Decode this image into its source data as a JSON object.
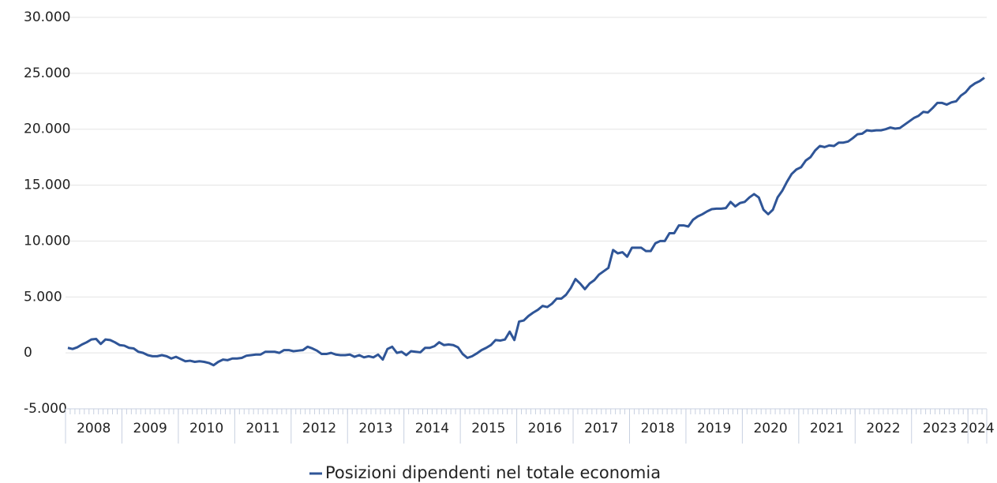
{
  "chart_data": {
    "type": "line",
    "categories": [
      "2008",
      null,
      null,
      null,
      null,
      null,
      null,
      null,
      null,
      null,
      null,
      null,
      "2009",
      null,
      null,
      null,
      null,
      null,
      null,
      null,
      null,
      null,
      null,
      null,
      "2010",
      null,
      null,
      null,
      null,
      null,
      null,
      null,
      null,
      null,
      null,
      null,
      "2011",
      null,
      null,
      null,
      null,
      null,
      null,
      null,
      null,
      null,
      null,
      null,
      "2012",
      null,
      null,
      null,
      null,
      null,
      null,
      null,
      null,
      null,
      null,
      null,
      "2013",
      null,
      null,
      null,
      null,
      null,
      null,
      null,
      null,
      null,
      null,
      null,
      "2014",
      null,
      null,
      null,
      null,
      null,
      null,
      null,
      null,
      null,
      null,
      null,
      "2015",
      null,
      null,
      null,
      null,
      null,
      null,
      null,
      null,
      null,
      null,
      null,
      "2016",
      null,
      null,
      null,
      null,
      null,
      null,
      null,
      null,
      null,
      null,
      null,
      "2017",
      null,
      null,
      null,
      null,
      null,
      null,
      null,
      null,
      null,
      null,
      null,
      "2018",
      null,
      null,
      null,
      null,
      null,
      null,
      null,
      null,
      null,
      null,
      null,
      "2019",
      null,
      null,
      null,
      null,
      null,
      null,
      null,
      null,
      null,
      null,
      null,
      "2020",
      null,
      null,
      null,
      null,
      null,
      null,
      null,
      null,
      null,
      null,
      null,
      "2021",
      null,
      null,
      null,
      null,
      null,
      null,
      null,
      null,
      null,
      null,
      null,
      "2022",
      null,
      null,
      null,
      null,
      null,
      null,
      null,
      null,
      null,
      null,
      null,
      "2023",
      null,
      null,
      null,
      null,
      null,
      null,
      null,
      null,
      null,
      null,
      null,
      "2024",
      null,
      null,
      null
    ],
    "series": [
      {
        "name": "Posizioni dipendenti nel totale economia",
        "color": "#2f5597",
        "values": [
          450,
          350,
          500,
          750,
          950,
          1200,
          1250,
          800,
          1200,
          1150,
          950,
          700,
          650,
          450,
          400,
          100,
          0,
          -200,
          -300,
          -300,
          -200,
          -300,
          -500,
          -350,
          -550,
          -750,
          -700,
          -800,
          -750,
          -800,
          -900,
          -1100,
          -800,
          -600,
          -650,
          -500,
          -500,
          -450,
          -250,
          -200,
          -150,
          -150,
          100,
          100,
          100,
          0,
          250,
          250,
          150,
          200,
          250,
          550,
          400,
          200,
          -100,
          -100,
          0,
          -150,
          -200,
          -200,
          -150,
          -350,
          -200,
          -400,
          -300,
          -400,
          -150,
          -600,
          350,
          550,
          0,
          100,
          -200,
          150,
          100,
          50,
          450,
          450,
          600,
          950,
          700,
          750,
          700,
          500,
          -100,
          -450,
          -300,
          -50,
          250,
          450,
          700,
          1150,
          1100,
          1200,
          1900,
          1150,
          2800,
          2900,
          3300,
          3600,
          3850,
          4200,
          4100,
          4400,
          4850,
          4850,
          5200,
          5800,
          6600,
          6200,
          5700,
          6200,
          6500,
          7000,
          7300,
          7600,
          9200,
          8900,
          9000,
          8600,
          9400,
          9400,
          9400,
          9100,
          9100,
          9800,
          10000,
          10000,
          10700,
          10700,
          11400,
          11400,
          11300,
          11900,
          12200,
          12400,
          12650,
          12850,
          12900,
          12900,
          12950,
          13500,
          13100,
          13400,
          13500,
          13900,
          14200,
          13900,
          12800,
          12400,
          12800,
          13900,
          14500,
          15300,
          16000,
          16400,
          16600,
          17200,
          17500,
          18100,
          18500,
          18400,
          18550,
          18500,
          18800,
          18800,
          18900,
          19200,
          19550,
          19600,
          19900,
          19850,
          19900,
          19900,
          20000,
          20150,
          20050,
          20100,
          20400,
          20700,
          21000,
          21200,
          21550,
          21500,
          21900,
          22350,
          22350,
          22200,
          22400,
          22500,
          23000,
          23300,
          23800,
          24100,
          24300,
          24600
        ]
      }
    ],
    "ylim": [
      -5000,
      30000
    ],
    "yticks": [
      {
        "value": -5000,
        "label": "-5.000"
      },
      0,
      {
        "value": 5000,
        "label": "5.000"
      },
      {
        "value": 10000,
        "label": "10.000"
      },
      {
        "value": 15000,
        "label": "15.000"
      },
      {
        "value": 20000,
        "label": "20.000"
      },
      {
        "value": 25000,
        "label": "25.000"
      },
      {
        "value": 30000,
        "label": "30.000"
      }
    ],
    "grid": true,
    "legend": "bottom"
  }
}
